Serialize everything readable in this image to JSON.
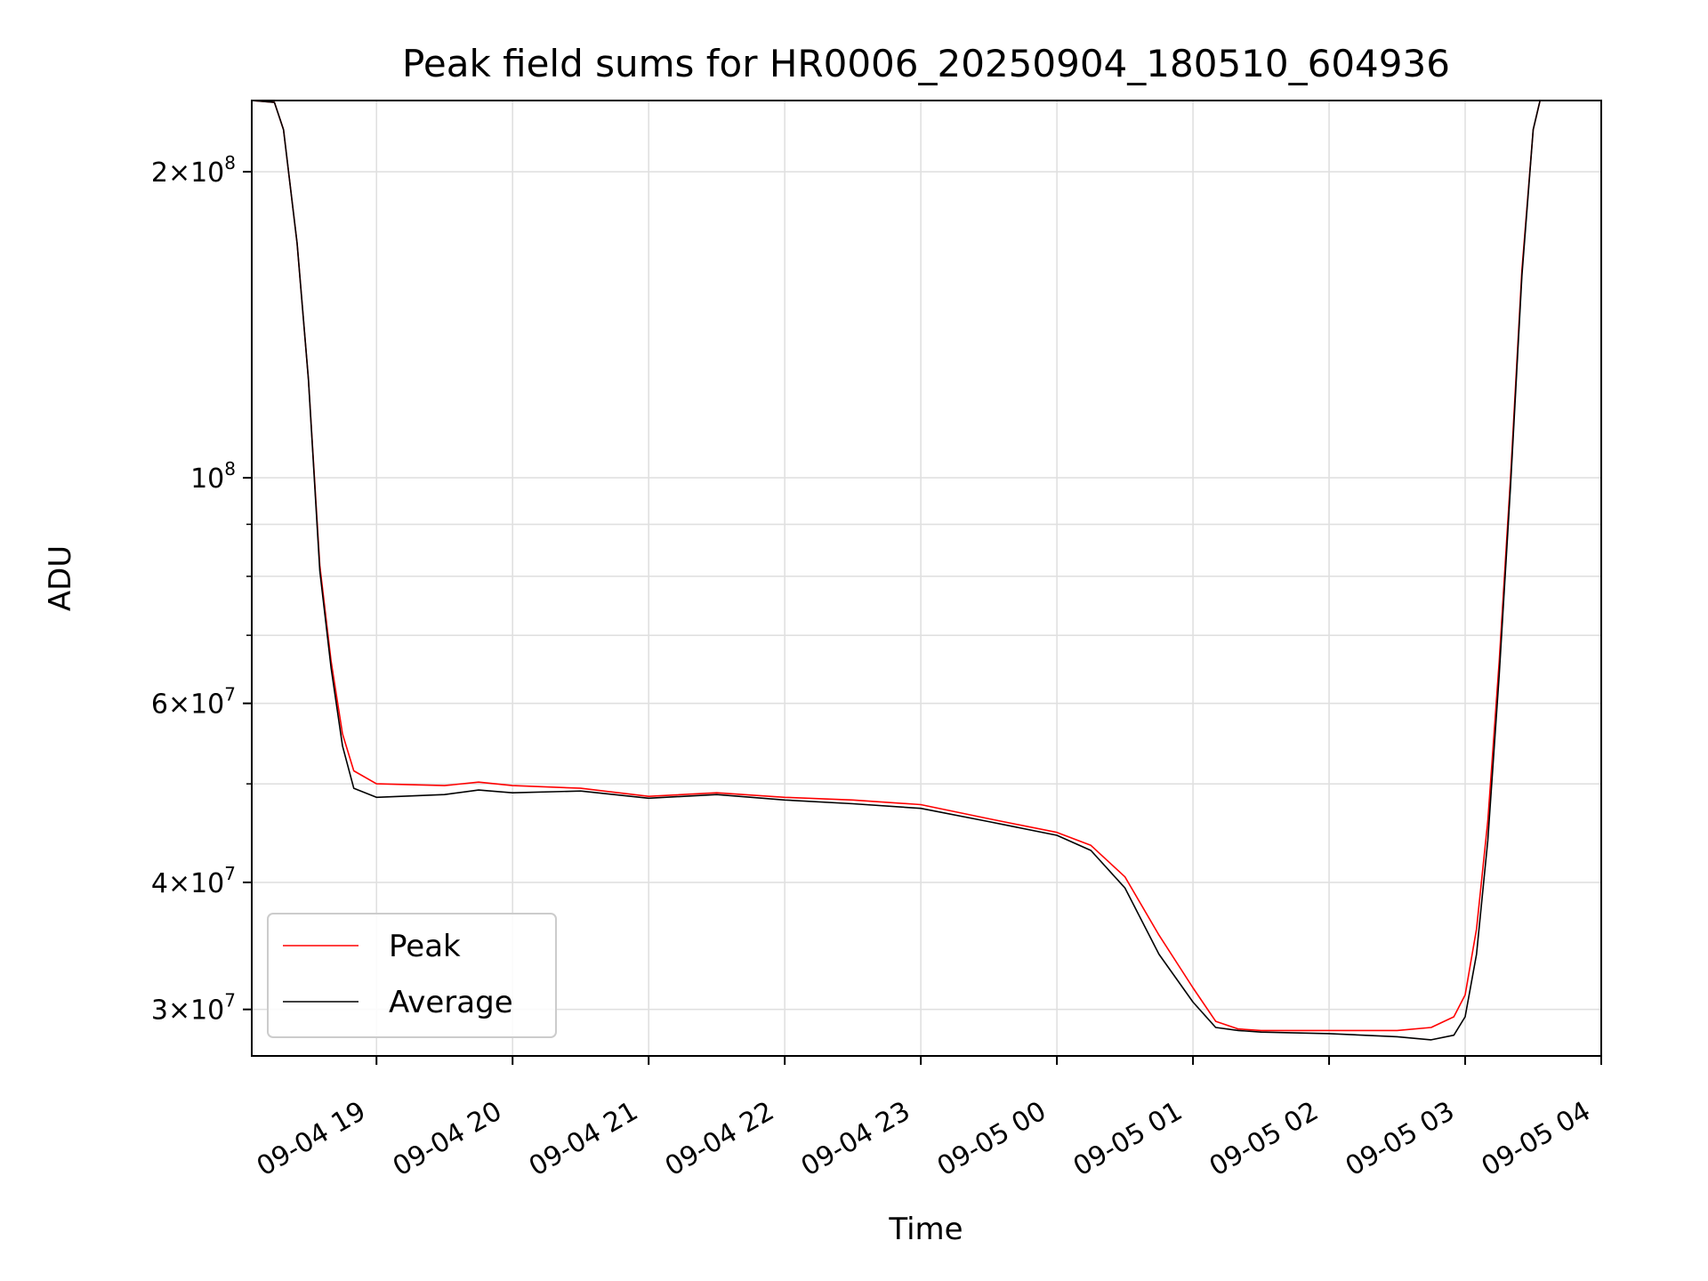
{
  "chart_data": {
    "type": "line",
    "title": "Peak field sums for HR0006_20250904_180510_604936",
    "xlabel": "Time",
    "ylabel": "ADU",
    "yscale": "log",
    "ylim": [
      27000000,
      235000000
    ],
    "xlim": [
      "2025-09-04T18:05:00",
      "2025-09-05T04:00:00"
    ],
    "grid": true,
    "legend_position": "lower-left",
    "x_ticks": [
      {
        "t": "2025-09-04T19:00:00",
        "label": "09-04 19"
      },
      {
        "t": "2025-09-04T20:00:00",
        "label": "09-04 20"
      },
      {
        "t": "2025-09-04T21:00:00",
        "label": "09-04 21"
      },
      {
        "t": "2025-09-04T22:00:00",
        "label": "09-04 22"
      },
      {
        "t": "2025-09-04T23:00:00",
        "label": "09-04 23"
      },
      {
        "t": "2025-09-05T00:00:00",
        "label": "09-05 00"
      },
      {
        "t": "2025-09-05T01:00:00",
        "label": "09-05 01"
      },
      {
        "t": "2025-09-05T02:00:00",
        "label": "09-05 02"
      },
      {
        "t": "2025-09-05T03:00:00",
        "label": "09-05 03"
      },
      {
        "t": "2025-09-05T04:00:00",
        "label": "09-05 04"
      }
    ],
    "y_ticks": [
      {
        "value": 30000000,
        "mantissa": "3",
        "exp": "7"
      },
      {
        "value": 40000000,
        "mantissa": "4",
        "exp": "7"
      },
      {
        "value": 60000000,
        "mantissa": "6",
        "exp": "7"
      },
      {
        "value": 100000000,
        "mantissa": "",
        "exp": "8"
      },
      {
        "value": 200000000,
        "mantissa": "2",
        "exp": "8"
      }
    ],
    "y_minor": [
      50000000,
      70000000,
      80000000,
      90000000
    ],
    "series": [
      {
        "name": "Peak",
        "color": "#ff0000",
        "points": [
          [
            "2025-09-04T18:05:00",
            235000000
          ],
          [
            "2025-09-04T18:15:00",
            234000000
          ],
          [
            "2025-09-04T18:19:00",
            220000000
          ],
          [
            "2025-09-04T18:25:00",
            170000000
          ],
          [
            "2025-09-04T18:30:00",
            125000000
          ],
          [
            "2025-09-04T18:35:00",
            82000000
          ],
          [
            "2025-09-04T18:40:00",
            66000000
          ],
          [
            "2025-09-04T18:45:00",
            56000000
          ],
          [
            "2025-09-04T18:50:00",
            51500000
          ],
          [
            "2025-09-04T19:00:00",
            50000000
          ],
          [
            "2025-09-04T19:30:00",
            49800000
          ],
          [
            "2025-09-04T19:45:00",
            50200000
          ],
          [
            "2025-09-04T20:00:00",
            49800000
          ],
          [
            "2025-09-04T20:30:00",
            49500000
          ],
          [
            "2025-09-04T21:00:00",
            48600000
          ],
          [
            "2025-09-04T21:30:00",
            49000000
          ],
          [
            "2025-09-04T22:00:00",
            48500000
          ],
          [
            "2025-09-04T22:30:00",
            48200000
          ],
          [
            "2025-09-04T23:00:00",
            47700000
          ],
          [
            "2025-09-04T23:30:00",
            46200000
          ],
          [
            "2025-09-05T00:00:00",
            44800000
          ],
          [
            "2025-09-05T00:15:00",
            43500000
          ],
          [
            "2025-09-05T00:30:00",
            40500000
          ],
          [
            "2025-09-05T00:45:00",
            35500000
          ],
          [
            "2025-09-05T01:00:00",
            31500000
          ],
          [
            "2025-09-05T01:10:00",
            29200000
          ],
          [
            "2025-09-05T01:20:00",
            28700000
          ],
          [
            "2025-09-05T01:30:00",
            28600000
          ],
          [
            "2025-09-05T02:00:00",
            28600000
          ],
          [
            "2025-09-05T02:30:00",
            28600000
          ],
          [
            "2025-09-05T02:45:00",
            28800000
          ],
          [
            "2025-09-05T02:55:00",
            29500000
          ],
          [
            "2025-09-05T03:00:00",
            31000000
          ],
          [
            "2025-09-05T03:05:00",
            36000000
          ],
          [
            "2025-09-05T03:10:00",
            46000000
          ],
          [
            "2025-09-05T03:15:00",
            66000000
          ],
          [
            "2025-09-05T03:20:00",
            100000000
          ],
          [
            "2025-09-05T03:25:00",
            160000000
          ],
          [
            "2025-09-05T03:30:00",
            220000000
          ],
          [
            "2025-09-05T03:33:00",
            235000000
          ]
        ]
      },
      {
        "name": "Average",
        "color": "#000000",
        "points": [
          [
            "2025-09-04T18:05:00",
            235000000
          ],
          [
            "2025-09-04T18:15:00",
            234000000
          ],
          [
            "2025-09-04T18:19:00",
            220000000
          ],
          [
            "2025-09-04T18:25:00",
            170000000
          ],
          [
            "2025-09-04T18:30:00",
            125000000
          ],
          [
            "2025-09-04T18:35:00",
            81000000
          ],
          [
            "2025-09-04T18:40:00",
            65000000
          ],
          [
            "2025-09-04T18:45:00",
            54500000
          ],
          [
            "2025-09-04T18:50:00",
            49500000
          ],
          [
            "2025-09-04T19:00:00",
            48500000
          ],
          [
            "2025-09-04T19:30:00",
            48800000
          ],
          [
            "2025-09-04T19:45:00",
            49300000
          ],
          [
            "2025-09-04T20:00:00",
            49000000
          ],
          [
            "2025-09-04T20:30:00",
            49200000
          ],
          [
            "2025-09-04T21:00:00",
            48400000
          ],
          [
            "2025-09-04T21:30:00",
            48800000
          ],
          [
            "2025-09-04T22:00:00",
            48200000
          ],
          [
            "2025-09-04T22:30:00",
            47800000
          ],
          [
            "2025-09-04T23:00:00",
            47300000
          ],
          [
            "2025-09-04T23:30:00",
            45900000
          ],
          [
            "2025-09-05T00:00:00",
            44500000
          ],
          [
            "2025-09-05T00:15:00",
            43000000
          ],
          [
            "2025-09-05T00:30:00",
            39500000
          ],
          [
            "2025-09-05T00:45:00",
            34000000
          ],
          [
            "2025-09-05T01:00:00",
            30500000
          ],
          [
            "2025-09-05T01:10:00",
            28800000
          ],
          [
            "2025-09-05T01:20:00",
            28600000
          ],
          [
            "2025-09-05T01:30:00",
            28500000
          ],
          [
            "2025-09-05T02:00:00",
            28400000
          ],
          [
            "2025-09-05T02:30:00",
            28200000
          ],
          [
            "2025-09-05T02:45:00",
            28000000
          ],
          [
            "2025-09-05T02:55:00",
            28300000
          ],
          [
            "2025-09-05T03:00:00",
            29500000
          ],
          [
            "2025-09-05T03:05:00",
            34000000
          ],
          [
            "2025-09-05T03:10:00",
            44000000
          ],
          [
            "2025-09-05T03:15:00",
            64000000
          ],
          [
            "2025-09-05T03:20:00",
            98000000
          ],
          [
            "2025-09-05T03:25:00",
            158000000
          ],
          [
            "2025-09-05T03:30:00",
            220000000
          ],
          [
            "2025-09-05T03:33:00",
            235000000
          ]
        ]
      }
    ]
  }
}
